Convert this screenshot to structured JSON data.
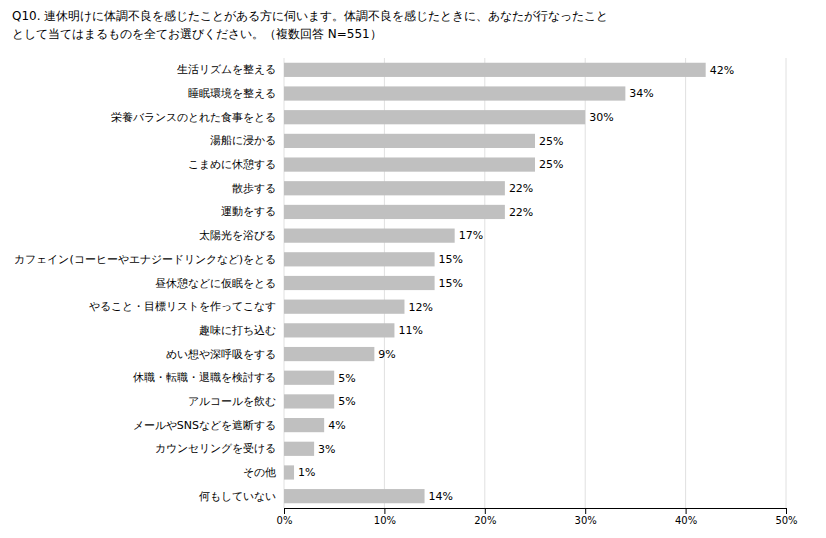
{
  "chart_data": {
    "type": "bar",
    "orientation": "horizontal",
    "title": "Q10.  連休明けに体調不良を感じたことがある方に伺います。体調不良を感じたときに、あなたが行なったこと",
    "subtitle": "として当てはまるものを全てお選びください。（複数回答  N=551）",
    "categories": [
      "生活リズムを整える",
      "睡眠環境を整える",
      "栄養バランスのとれた食事をとる",
      "湯船に浸かる",
      "こまめに休憩する",
      "散歩する",
      "運動をする",
      "太陽光を浴びる",
      "カフェイン(コーヒーやエナジードリンクなど)をとる",
      "昼休憩などに仮眠をとる",
      "やること・目標リストを作ってこなす",
      "趣味に打ち込む",
      "めい想や深呼吸をする",
      "休職・転職・退職を検討する",
      "アルコールを飲む",
      "メールやSNSなどを遮断する",
      "カウンセリングを受ける",
      "その他",
      "何もしていない"
    ],
    "values": [
      42,
      34,
      30,
      25,
      25,
      22,
      22,
      17,
      15,
      15,
      12,
      11,
      9,
      5,
      5,
      4,
      3,
      1,
      14
    ],
    "value_labels": [
      "42%",
      "34%",
      "30%",
      "25%",
      "25%",
      "22%",
      "22%",
      "17%",
      "15%",
      "15%",
      "12%",
      "11%",
      "9%",
      "5%",
      "5%",
      "4%",
      "3%",
      "1%",
      "14%"
    ],
    "data_labels": true,
    "color": "#c0c0c0",
    "xlim": [
      0,
      50
    ],
    "xticks": [
      {
        "value": 0,
        "label": "0%"
      },
      {
        "value": 10,
        "label": "10%"
      },
      {
        "value": 20,
        "label": "20%"
      },
      {
        "value": 30,
        "label": "30%"
      },
      {
        "value": 40,
        "label": "40%"
      },
      {
        "value": 50,
        "label": "50%"
      }
    ],
    "grid": true
  }
}
